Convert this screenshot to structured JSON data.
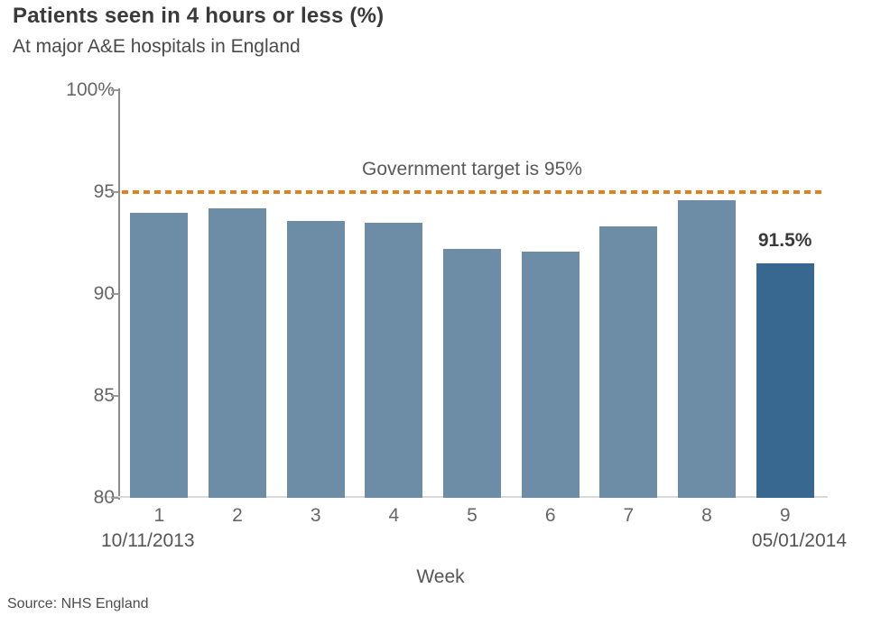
{
  "header": {
    "title": "Patients seen in 4 hours or less (%)",
    "subtitle": "At major A&E hospitals in England"
  },
  "chart_data": {
    "type": "bar",
    "title": "Patients seen in 4 hours or less (%)",
    "subtitle": "At major A&E hospitals in England",
    "categories": [
      "1",
      "2",
      "3",
      "4",
      "5",
      "6",
      "7",
      "8",
      "9"
    ],
    "values": [
      94.0,
      94.2,
      93.6,
      93.5,
      92.2,
      92.1,
      93.3,
      94.6,
      91.5
    ],
    "xlabel": "Week",
    "ylabel": "",
    "ylim": [
      80,
      100
    ],
    "yticks": [
      {
        "value": 100,
        "label": "100%"
      },
      {
        "value": 95,
        "label": "95"
      },
      {
        "value": 90,
        "label": "90"
      },
      {
        "value": 85,
        "label": "85"
      },
      {
        "value": 80,
        "label": "80"
      }
    ],
    "grid": false,
    "legend": null,
    "target_line": {
      "value": 95,
      "label": "Government target is 95%",
      "color": "#e2801f"
    },
    "bar_color": "#6d8ca6",
    "highlight_index": 8,
    "highlight_color": "#38688f",
    "highlight_label": "91.5%",
    "first_date": "10/11/2013",
    "last_date": "05/01/2014"
  },
  "footer": {
    "source": "Source: NHS England"
  }
}
